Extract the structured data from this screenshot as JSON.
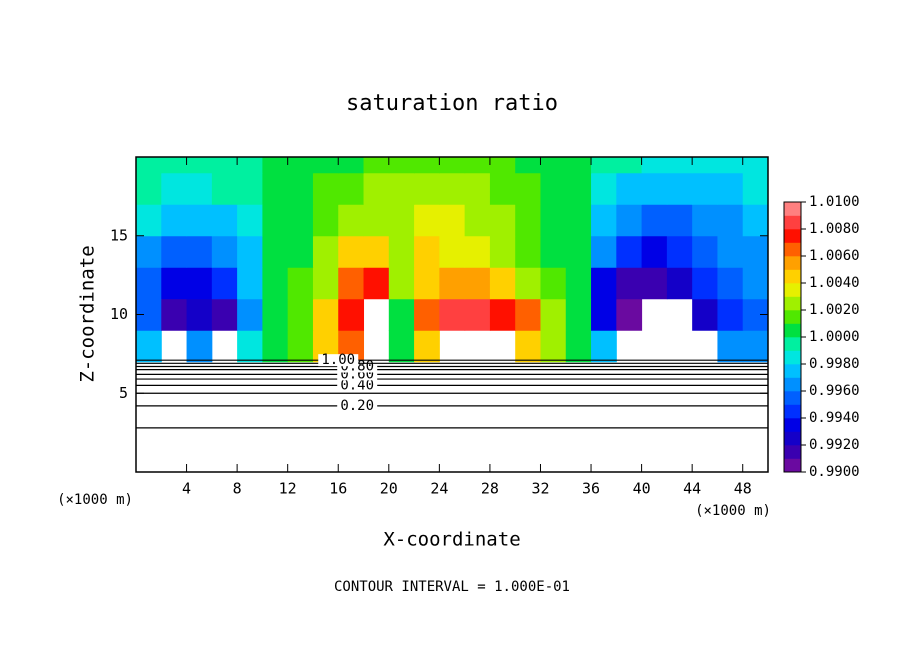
{
  "chart_data": {
    "type": "contour",
    "title": "saturation ratio",
    "x_label": "X-coordinate",
    "y_label": "Z-coordinate",
    "x_unit": "(×1000 m)",
    "y_unit": "(×1000 m)",
    "footer": "CONTOUR INTERVAL = 1.000E-01",
    "xlim": [
      0,
      50
    ],
    "ylim": [
      0,
      20
    ],
    "xticks": [
      4,
      8,
      12,
      16,
      20,
      24,
      28,
      32,
      36,
      40,
      44,
      48
    ],
    "yticks": [
      5,
      10,
      15
    ],
    "clim": [
      0.99,
      1.01
    ],
    "colors": [
      "#6a0aa0",
      "#3a00b0",
      "#1400c8",
      "#0000e6",
      "#0030ff",
      "#0060ff",
      "#0090ff",
      "#00c0ff",
      "#00e6e0",
      "#00f0a0",
      "#00e040",
      "#50e800",
      "#a0f000",
      "#e6f000",
      "#ffd000",
      "#ffa000",
      "#ff6000",
      "#ff1000",
      "#ff4040",
      "#ff8080"
    ],
    "cticks": [
      {
        "value": 0.99,
        "label": "0.9900"
      },
      {
        "value": 0.992,
        "label": "0.9920"
      },
      {
        "value": 0.994,
        "label": "0.9940"
      },
      {
        "value": 0.996,
        "label": "0.9960"
      },
      {
        "value": 0.998,
        "label": "0.9980"
      },
      {
        "value": 1.0,
        "label": "1.0000"
      },
      {
        "value": 1.002,
        "label": "1.0020"
      },
      {
        "value": 1.004,
        "label": "1.0040"
      },
      {
        "value": 1.006,
        "label": "1.0060"
      },
      {
        "value": 1.008,
        "label": "1.0080"
      },
      {
        "value": 1.01,
        "label": "1.0100"
      }
    ],
    "x": [
      1,
      3,
      5,
      7,
      9,
      11,
      13,
      15,
      17,
      19,
      21,
      23,
      25,
      27,
      29,
      31,
      33,
      35,
      37,
      39,
      41,
      43,
      45,
      47,
      49
    ],
    "z": [
      8,
      10,
      12,
      14,
      16,
      18,
      20
    ],
    "field": [
      [
        0.9975,
        null,
        0.9965,
        null,
        0.9985,
        1.0005,
        1.0015,
        1.004,
        1.006,
        null,
        1.0005,
        1.005,
        null,
        null,
        null,
        1.004,
        1.002,
        1.0003,
        0.997,
        null,
        null,
        null,
        null,
        0.996,
        0.9968
      ],
      [
        0.995,
        0.991,
        0.992,
        0.9915,
        0.9965,
        1.0005,
        1.0015,
        1.004,
        1.0075,
        null,
        1.001,
        1.007,
        1.0082,
        1.008,
        1.0075,
        1.006,
        1.002,
        1.0003,
        0.993,
        0.9905,
        null,
        null,
        0.9925,
        0.9945,
        0.9955
      ],
      [
        0.9955,
        0.993,
        0.993,
        0.9945,
        0.997,
        1.0005,
        1.0012,
        1.003,
        1.0065,
        1.0072,
        1.0025,
        1.005,
        1.0058,
        1.0055,
        1.0045,
        1.003,
        1.0012,
        1.0003,
        0.9935,
        0.9915,
        0.991,
        0.992,
        0.994,
        0.9955,
        0.9962
      ],
      [
        0.9968,
        0.9955,
        0.995,
        0.996,
        0.9975,
        1.0004,
        1.001,
        1.002,
        1.004,
        1.005,
        1.003,
        1.004,
        1.0038,
        1.0032,
        1.0025,
        1.0018,
        1.0008,
        1.0003,
        0.996,
        0.994,
        0.9932,
        0.994,
        0.995,
        0.996,
        0.9966
      ],
      [
        0.9982,
        0.9978,
        0.9975,
        0.9978,
        0.9985,
        1.0004,
        1.0008,
        1.0014,
        1.002,
        1.0026,
        1.003,
        1.0032,
        1.0031,
        1.0028,
        1.0022,
        1.0015,
        1.0008,
        1.0003,
        0.9975,
        0.9962,
        0.9958,
        0.9958,
        0.9962,
        0.9968,
        0.9972
      ],
      [
        0.999,
        0.9988,
        0.9988,
        0.999,
        0.9993,
        1.0004,
        1.0008,
        1.0012,
        1.0016,
        1.002,
        1.0022,
        1.0024,
        1.0023,
        1.0021,
        1.0017,
        1.0012,
        1.0007,
        1.0002,
        0.9985,
        0.9978,
        0.9975,
        0.9975,
        0.9977,
        0.9978,
        0.998
      ],
      [
        0.9995,
        0.9995,
        0.9995,
        0.9995,
        0.9995,
        1.0003,
        1.0006,
        1.0008,
        1.001,
        1.0012,
        1.0014,
        1.0015,
        1.0015,
        1.0014,
        1.0012,
        1.001,
        1.0006,
        1.0002,
        0.9993,
        0.999,
        0.9988,
        0.9988,
        0.9987,
        0.9987,
        0.9987
      ]
    ],
    "contour_levels": [
      0.1,
      {
        "value": 0.2,
        "label": "0.20"
      },
      0.3,
      {
        "value": 0.4,
        "label": "0.40"
      },
      0.5,
      {
        "value": 0.6,
        "label": "0.60"
      },
      0.7,
      {
        "value": 0.8,
        "label": "0.80"
      },
      0.9,
      {
        "value": 1.0,
        "label": "1.00"
      }
    ],
    "contour_heights": [
      2.8,
      4.2,
      5.0,
      5.5,
      5.9,
      6.2,
      6.5,
      6.7,
      6.9,
      7.1
    ],
    "contour_label_x": [
      null,
      17.5,
      null,
      17.5,
      null,
      17.5,
      null,
      17.5,
      null,
      16
    ]
  }
}
